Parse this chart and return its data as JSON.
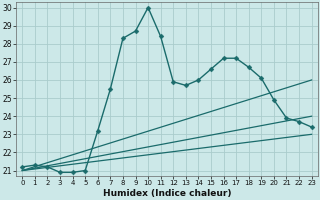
{
  "xlabel": "Humidex (Indice chaleur)",
  "background_color": "#cce8e8",
  "grid_color": "#aacccc",
  "line_color": "#1a6b6b",
  "xlim": [
    -0.5,
    23.5
  ],
  "ylim": [
    20.7,
    30.3
  ],
  "xticks": [
    0,
    1,
    2,
    3,
    4,
    5,
    6,
    7,
    8,
    9,
    10,
    11,
    12,
    13,
    14,
    15,
    16,
    17,
    18,
    19,
    20,
    21,
    22,
    23
  ],
  "yticks": [
    21,
    22,
    23,
    24,
    25,
    26,
    27,
    28,
    29,
    30
  ],
  "main_x": [
    0,
    1,
    2,
    3,
    4,
    5,
    6,
    7,
    8,
    9,
    10,
    11,
    12,
    13,
    14,
    15,
    16,
    17,
    18,
    19,
    20,
    21,
    22,
    23
  ],
  "main_y": [
    21.2,
    21.3,
    21.2,
    20.9,
    20.9,
    21.0,
    23.2,
    25.5,
    28.3,
    28.7,
    30.0,
    28.4,
    25.9,
    25.7,
    26.0,
    26.6,
    27.2,
    27.2,
    26.7,
    26.1,
    24.9,
    23.9,
    23.7,
    23.4
  ],
  "line1_x": [
    0,
    23
  ],
  "line1_y": [
    21.0,
    26.0
  ],
  "line2_x": [
    0,
    23
  ],
  "line2_y": [
    21.0,
    24.0
  ],
  "line3_x": [
    0,
    23
  ],
  "line3_y": [
    21.0,
    23.0
  ]
}
